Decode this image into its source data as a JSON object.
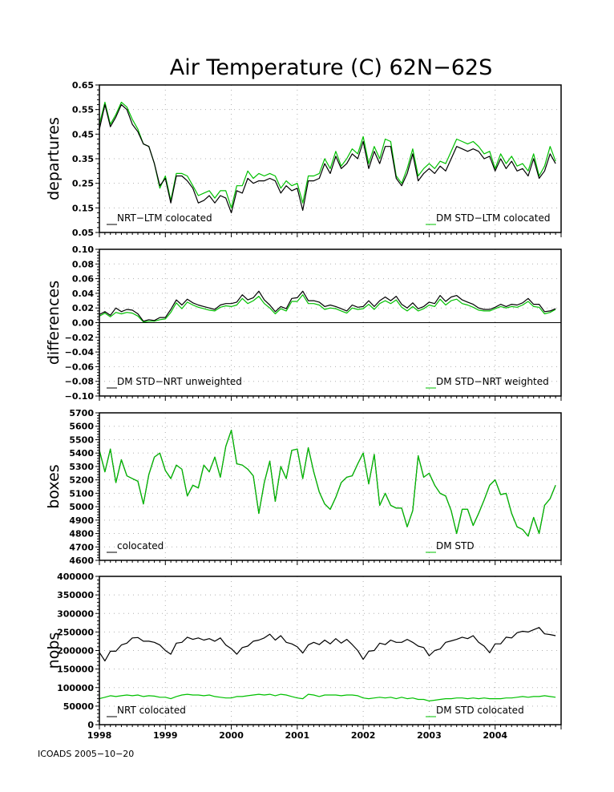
{
  "title": "Air Temperature (C) 62N−62S",
  "footer": "ICOADS 2005−10−20",
  "x_ticks": [
    "1998",
    "1999",
    "2000",
    "2001",
    "2002",
    "2003",
    "2004"
  ],
  "colors": {
    "black": "#000000",
    "green": "#00c000"
  },
  "chart_data": [
    {
      "type": "line",
      "ylabel": "departures",
      "ylim": [
        0.05,
        0.65
      ],
      "ticks": [
        "0.65",
        "0.55",
        "0.45",
        "0.35",
        "0.25",
        "0.15",
        "0.05"
      ],
      "legend": [
        "NRT−LTM colocated",
        "DM STD−LTM colocated"
      ],
      "series": [
        {
          "name": "NRT−LTM colocated",
          "color": "#000000",
          "values": [
            0.47,
            0.57,
            0.48,
            0.52,
            0.57,
            0.55,
            0.49,
            0.46,
            0.41,
            0.4,
            0.33,
            0.24,
            0.27,
            0.17,
            0.28,
            0.28,
            0.26,
            0.23,
            0.17,
            0.18,
            0.2,
            0.17,
            0.2,
            0.19,
            0.13,
            0.22,
            0.21,
            0.27,
            0.25,
            0.26,
            0.26,
            0.27,
            0.26,
            0.21,
            0.24,
            0.22,
            0.23,
            0.14,
            0.26,
            0.26,
            0.27,
            0.33,
            0.29,
            0.36,
            0.31,
            0.33,
            0.37,
            0.35,
            0.42,
            0.31,
            0.38,
            0.33,
            0.4,
            0.4,
            0.27,
            0.24,
            0.29,
            0.37,
            0.26,
            0.29,
            0.31,
            0.29,
            0.32,
            0.3,
            0.35,
            0.4,
            0.39,
            0.38,
            0.39,
            0.38,
            0.35,
            0.36,
            0.3,
            0.35,
            0.31,
            0.34,
            0.3,
            0.31,
            0.28,
            0.35,
            0.27,
            0.3,
            0.37,
            0.33
          ]
        },
        {
          "name": "DM STD−LTM colocated",
          "color": "#00c000",
          "values": [
            0.49,
            0.58,
            0.49,
            0.53,
            0.58,
            0.56,
            0.51,
            0.47,
            0.41,
            0.4,
            0.33,
            0.23,
            0.28,
            0.18,
            0.29,
            0.29,
            0.28,
            0.24,
            0.2,
            0.21,
            0.22,
            0.19,
            0.22,
            0.22,
            0.15,
            0.24,
            0.24,
            0.3,
            0.27,
            0.29,
            0.28,
            0.29,
            0.28,
            0.23,
            0.26,
            0.24,
            0.25,
            0.17,
            0.28,
            0.28,
            0.29,
            0.35,
            0.31,
            0.38,
            0.32,
            0.35,
            0.39,
            0.37,
            0.44,
            0.33,
            0.4,
            0.35,
            0.43,
            0.42,
            0.28,
            0.25,
            0.31,
            0.39,
            0.28,
            0.31,
            0.33,
            0.31,
            0.34,
            0.33,
            0.38,
            0.43,
            0.42,
            0.41,
            0.42,
            0.4,
            0.37,
            0.38,
            0.31,
            0.37,
            0.33,
            0.36,
            0.32,
            0.33,
            0.3,
            0.37,
            0.28,
            0.32,
            0.4,
            0.34
          ]
        }
      ]
    },
    {
      "type": "line",
      "ylabel": "differences",
      "ylim": [
        -0.1,
        0.1
      ],
      "ticks": [
        "0.10",
        "0.08",
        "0.06",
        "0.04",
        "0.02",
        "0.00",
        "−0.02",
        "−0.04",
        "−0.06",
        "−0.08",
        "−0.10"
      ],
      "legend": [
        "DM STD−NRT unweighted",
        "DM STD−NRT weighted"
      ],
      "series": [
        {
          "name": "DM STD−NRT unweighted",
          "color": "#000000",
          "values": [
            0.011,
            0.015,
            0.01,
            0.02,
            0.015,
            0.018,
            0.017,
            0.012,
            0.002,
            0.004,
            0.003,
            0.007,
            0.007,
            0.018,
            0.031,
            0.024,
            0.032,
            0.027,
            0.024,
            0.022,
            0.02,
            0.018,
            0.024,
            0.026,
            0.026,
            0.028,
            0.038,
            0.031,
            0.034,
            0.043,
            0.031,
            0.024,
            0.015,
            0.022,
            0.019,
            0.033,
            0.034,
            0.043,
            0.03,
            0.03,
            0.028,
            0.022,
            0.024,
            0.022,
            0.019,
            0.016,
            0.024,
            0.021,
            0.022,
            0.03,
            0.022,
            0.03,
            0.035,
            0.03,
            0.036,
            0.025,
            0.02,
            0.027,
            0.019,
            0.022,
            0.028,
            0.026,
            0.037,
            0.029,
            0.035,
            0.037,
            0.031,
            0.028,
            0.025,
            0.02,
            0.018,
            0.018,
            0.021,
            0.025,
            0.022,
            0.025,
            0.024,
            0.027,
            0.033,
            0.025,
            0.025,
            0.015,
            0.016,
            0.019
          ]
        },
        {
          "name": "DM STD−NRT weighted",
          "color": "#00c000",
          "values": [
            0.009,
            0.013,
            0.008,
            0.014,
            0.012,
            0.014,
            0.013,
            0.009,
            0.001,
            0.002,
            0.002,
            0.004,
            0.005,
            0.014,
            0.027,
            0.019,
            0.028,
            0.024,
            0.021,
            0.019,
            0.017,
            0.016,
            0.021,
            0.023,
            0.022,
            0.024,
            0.033,
            0.026,
            0.03,
            0.036,
            0.026,
            0.02,
            0.012,
            0.019,
            0.016,
            0.029,
            0.029,
            0.038,
            0.026,
            0.026,
            0.024,
            0.018,
            0.02,
            0.019,
            0.016,
            0.013,
            0.02,
            0.018,
            0.019,
            0.025,
            0.018,
            0.026,
            0.03,
            0.026,
            0.031,
            0.021,
            0.016,
            0.022,
            0.016,
            0.019,
            0.024,
            0.022,
            0.032,
            0.024,
            0.03,
            0.032,
            0.026,
            0.024,
            0.021,
            0.017,
            0.016,
            0.016,
            0.019,
            0.022,
            0.02,
            0.022,
            0.021,
            0.024,
            0.029,
            0.022,
            0.021,
            0.012,
            0.014,
            0.018
          ]
        }
      ]
    },
    {
      "type": "line",
      "ylabel": "boxes",
      "ylim": [
        4600,
        5700
      ],
      "ticks": [
        "5700",
        "5600",
        "5500",
        "5400",
        "5300",
        "5200",
        "5100",
        "5000",
        "4900",
        "4800",
        "4700",
        "4600"
      ],
      "legend": [
        "colocated",
        "DM STD"
      ],
      "series": [
        {
          "name": "colocated",
          "color": "#000000",
          "values": [
            5420,
            5260,
            5430,
            5180,
            5350,
            5230,
            5210,
            5190,
            5020,
            5240,
            5370,
            5400,
            5270,
            5210,
            5310,
            5280,
            5080,
            5160,
            5140,
            5310,
            5260,
            5370,
            5220,
            5450,
            5570,
            5320,
            5310,
            5280,
            5230,
            4950,
            5180,
            5340,
            5040,
            5300,
            5210,
            5420,
            5430,
            5210,
            5440,
            5260,
            5110,
            5020,
            4980,
            5070,
            5180,
            5220,
            5230,
            5320,
            5400,
            5170,
            5390,
            5010,
            5100,
            5010,
            4990,
            4990,
            4850,
            4970,
            5380,
            5220,
            5250,
            5160,
            5100,
            5080,
            4970,
            4800,
            4980,
            4980,
            4860,
            4950,
            5050,
            5160,
            5200,
            5090,
            5100,
            4950,
            4850,
            4830,
            4780,
            4920,
            4800,
            5010,
            5060,
            5160
          ]
        },
        {
          "name": "DM STD",
          "color": "#00c000",
          "values": [
            5420,
            5260,
            5430,
            5180,
            5350,
            5230,
            5210,
            5190,
            5020,
            5240,
            5370,
            5400,
            5270,
            5210,
            5310,
            5280,
            5080,
            5160,
            5140,
            5310,
            5260,
            5370,
            5220,
            5450,
            5570,
            5320,
            5310,
            5280,
            5230,
            4950,
            5180,
            5340,
            5040,
            5300,
            5210,
            5420,
            5430,
            5210,
            5440,
            5260,
            5110,
            5020,
            4980,
            5070,
            5180,
            5220,
            5230,
            5320,
            5400,
            5170,
            5390,
            5010,
            5100,
            5010,
            4990,
            4990,
            4850,
            4970,
            5380,
            5220,
            5250,
            5160,
            5100,
            5080,
            4970,
            4800,
            4980,
            4980,
            4860,
            4950,
            5050,
            5160,
            5200,
            5090,
            5100,
            4950,
            4850,
            4830,
            4780,
            4920,
            4800,
            5010,
            5060,
            5160
          ]
        }
      ]
    },
    {
      "type": "line",
      "ylabel": "nobs",
      "ylim": [
        0,
        400000
      ],
      "ticks": [
        "400000",
        "350000",
        "300000",
        "250000",
        "200000",
        "150000",
        "100000",
        "50000",
        "0"
      ],
      "legend": [
        "NRT colocated",
        "DM STD colocated"
      ],
      "series": [
        {
          "name": "NRT colocated",
          "color": "#000000",
          "values": [
            195000,
            172000,
            198000,
            198000,
            215000,
            220000,
            234000,
            235000,
            225000,
            225000,
            222000,
            215000,
            200000,
            190000,
            220000,
            222000,
            236000,
            230000,
            234000,
            228000,
            232000,
            225000,
            234000,
            215000,
            205000,
            190000,
            208000,
            212000,
            225000,
            228000,
            234000,
            244000,
            228000,
            240000,
            222000,
            218000,
            210000,
            193000,
            215000,
            222000,
            216000,
            228000,
            218000,
            232000,
            220000,
            230000,
            216000,
            200000,
            176000,
            198000,
            200000,
            220000,
            216000,
            228000,
            222000,
            222000,
            230000,
            222000,
            212000,
            208000,
            186000,
            200000,
            204000,
            222000,
            226000,
            230000,
            236000,
            232000,
            240000,
            222000,
            212000,
            194000,
            218000,
            218000,
            236000,
            234000,
            248000,
            252000,
            250000,
            256000,
            262000,
            245000,
            243000,
            240000
          ]
        },
        {
          "name": "DM STD colocated",
          "color": "#00c000",
          "values": [
            70000,
            74000,
            78000,
            76000,
            78000,
            80000,
            78000,
            80000,
            76000,
            78000,
            77000,
            74000,
            74000,
            70000,
            76000,
            80000,
            82000,
            80000,
            80000,
            78000,
            80000,
            76000,
            74000,
            72000,
            72000,
            76000,
            76000,
            78000,
            80000,
            82000,
            80000,
            82000,
            78000,
            82000,
            80000,
            76000,
            72000,
            70000,
            82000,
            80000,
            76000,
            80000,
            80000,
            80000,
            78000,
            80000,
            80000,
            78000,
            72000,
            70000,
            72000,
            74000,
            72000,
            74000,
            70000,
            74000,
            70000,
            72000,
            68000,
            68000,
            64000,
            66000,
            68000,
            70000,
            70000,
            72000,
            72000,
            70000,
            72000,
            70000,
            72000,
            70000,
            70000,
            70000,
            72000,
            72000,
            74000,
            76000,
            74000,
            76000,
            76000,
            78000,
            76000,
            74000
          ]
        }
      ]
    }
  ]
}
